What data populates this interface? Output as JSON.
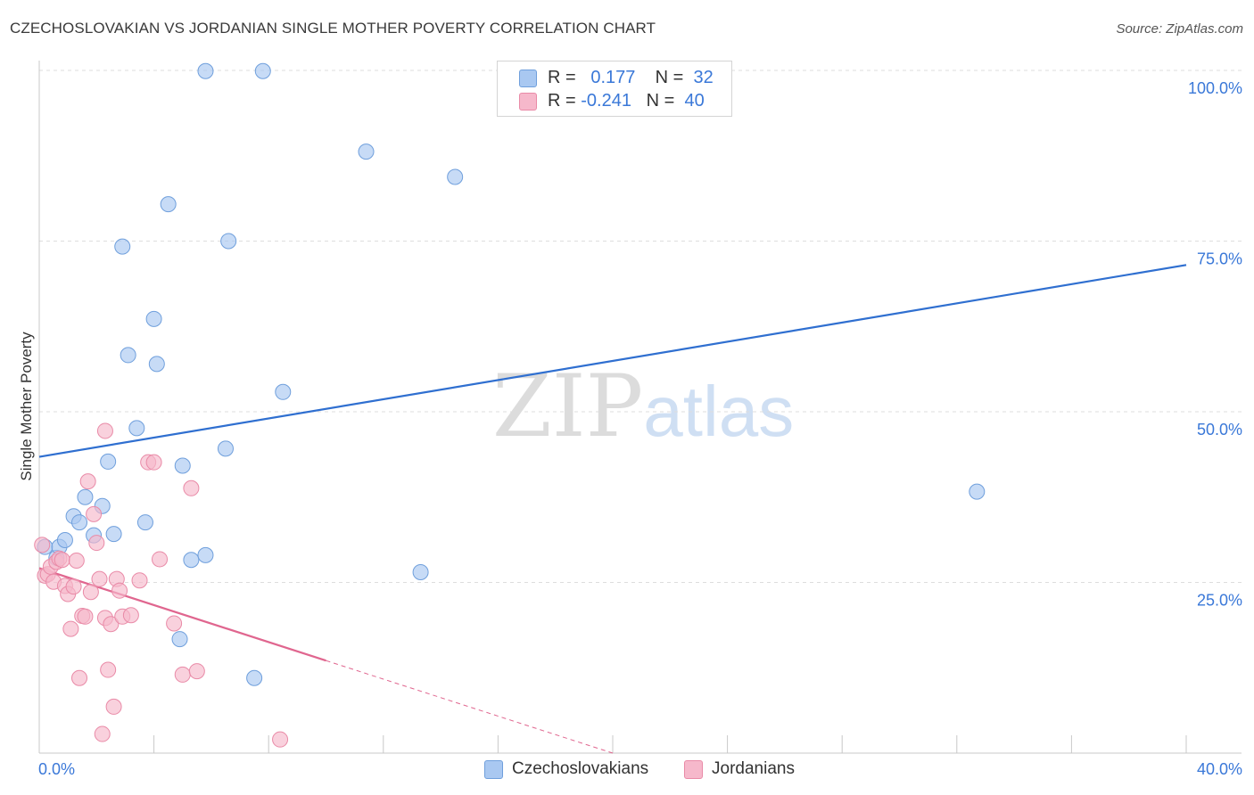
{
  "title": "CZECHOSLOVAKIAN VS JORDANIAN SINGLE MOTHER POVERTY CORRELATION CHART",
  "source": "Source: ZipAtlas.com",
  "watermark": {
    "zip": "ZIP",
    "atlas": "atlas"
  },
  "legend": {
    "rows": [
      {
        "r_label": "R =",
        "r_value": "0.177",
        "n_label": "N =",
        "n_value": "32",
        "color": "#a9c8f1"
      },
      {
        "r_label": "R =",
        "r_value": "-0.241",
        "n_label": "N =",
        "n_value": "40",
        "color": "#f6b8cb"
      }
    ]
  },
  "bottom_legend": [
    {
      "label": "Czechoslovakians",
      "color": "#a9c8f1"
    },
    {
      "label": "Jordanians",
      "color": "#f6b8cb"
    }
  ],
  "chart_data": {
    "type": "scatter",
    "title": "CZECHOSLOVAKIAN VS JORDANIAN SINGLE MOTHER POVERTY CORRELATION CHART",
    "xlabel": "",
    "ylabel": "Single Mother Poverty",
    "xlim": [
      0,
      40
    ],
    "ylim": [
      0,
      100
    ],
    "x_tick_labels": [
      "0.0%",
      "40.0%"
    ],
    "y_tick_labels": [
      {
        "value": 100,
        "label": "100.0%"
      },
      {
        "value": 75,
        "label": "75.0%"
      },
      {
        "value": 50,
        "label": "50.0%"
      },
      {
        "value": 25,
        "label": "25.0%"
      }
    ],
    "grid": true,
    "series": [
      {
        "name": "Czechoslovakians",
        "color": "#a9c8f1",
        "stroke": "#6f9fdc",
        "line_color": "#2f6fd0",
        "trend": {
          "x0": 0,
          "y0": 43.4,
          "x1": 40,
          "y1": 71.5,
          "dashed_from": null
        },
        "points": [
          [
            0.2,
            30.2
          ],
          [
            0.6,
            28.6
          ],
          [
            0.7,
            30.2
          ],
          [
            0.9,
            31.2
          ],
          [
            1.2,
            34.7
          ],
          [
            1.4,
            33.8
          ],
          [
            1.6,
            37.5
          ],
          [
            1.9,
            31.9
          ],
          [
            2.2,
            36.2
          ],
          [
            2.4,
            42.7
          ],
          [
            2.6,
            32.1
          ],
          [
            2.9,
            74.2
          ],
          [
            3.1,
            58.3
          ],
          [
            3.4,
            47.6
          ],
          [
            3.7,
            33.8
          ],
          [
            4.0,
            63.6
          ],
          [
            4.1,
            57.0
          ],
          [
            4.5,
            80.4
          ],
          [
            4.9,
            16.7
          ],
          [
            5.0,
            42.1
          ],
          [
            5.3,
            28.3
          ],
          [
            5.8,
            29.0
          ],
          [
            5.8,
            99.9
          ],
          [
            6.5,
            44.6
          ],
          [
            6.6,
            75.0
          ],
          [
            7.5,
            11.0
          ],
          [
            7.8,
            99.9
          ],
          [
            8.5,
            52.9
          ],
          [
            11.4,
            88.1
          ],
          [
            13.3,
            26.5
          ],
          [
            14.5,
            84.4
          ],
          [
            32.7,
            38.3
          ]
        ]
      },
      {
        "name": "Jordanians",
        "color": "#f6b8cb",
        "stroke": "#e98aa7",
        "line_color": "#e0668f",
        "trend": {
          "x0": 0,
          "y0": 27.1,
          "x1": 20.0,
          "y1": 0,
          "solid_until_x": 10.0
        },
        "points": [
          [
            0.1,
            30.5
          ],
          [
            0.2,
            26.0
          ],
          [
            0.3,
            26.2
          ],
          [
            0.4,
            27.3
          ],
          [
            0.5,
            25.1
          ],
          [
            0.6,
            28.0
          ],
          [
            0.7,
            28.5
          ],
          [
            0.8,
            28.3
          ],
          [
            0.9,
            24.5
          ],
          [
            1.0,
            23.3
          ],
          [
            1.1,
            18.2
          ],
          [
            1.2,
            24.4
          ],
          [
            1.3,
            28.2
          ],
          [
            1.4,
            11.0
          ],
          [
            1.5,
            20.1
          ],
          [
            1.6,
            20.0
          ],
          [
            1.7,
            39.8
          ],
          [
            1.8,
            23.6
          ],
          [
            1.9,
            35.0
          ],
          [
            2.0,
            30.8
          ],
          [
            2.1,
            25.5
          ],
          [
            2.2,
            2.8
          ],
          [
            2.3,
            19.8
          ],
          [
            2.4,
            12.2
          ],
          [
            2.5,
            18.9
          ],
          [
            2.6,
            6.8
          ],
          [
            2.7,
            25.5
          ],
          [
            2.8,
            23.8
          ],
          [
            2.9,
            20.0
          ],
          [
            3.2,
            20.2
          ],
          [
            3.5,
            25.3
          ],
          [
            3.8,
            42.6
          ],
          [
            4.0,
            42.6
          ],
          [
            4.2,
            28.4
          ],
          [
            4.7,
            19.0
          ],
          [
            5.0,
            11.5
          ],
          [
            5.3,
            38.8
          ],
          [
            5.5,
            12.0
          ],
          [
            2.3,
            47.2
          ],
          [
            8.4,
            2.0
          ]
        ]
      }
    ]
  }
}
